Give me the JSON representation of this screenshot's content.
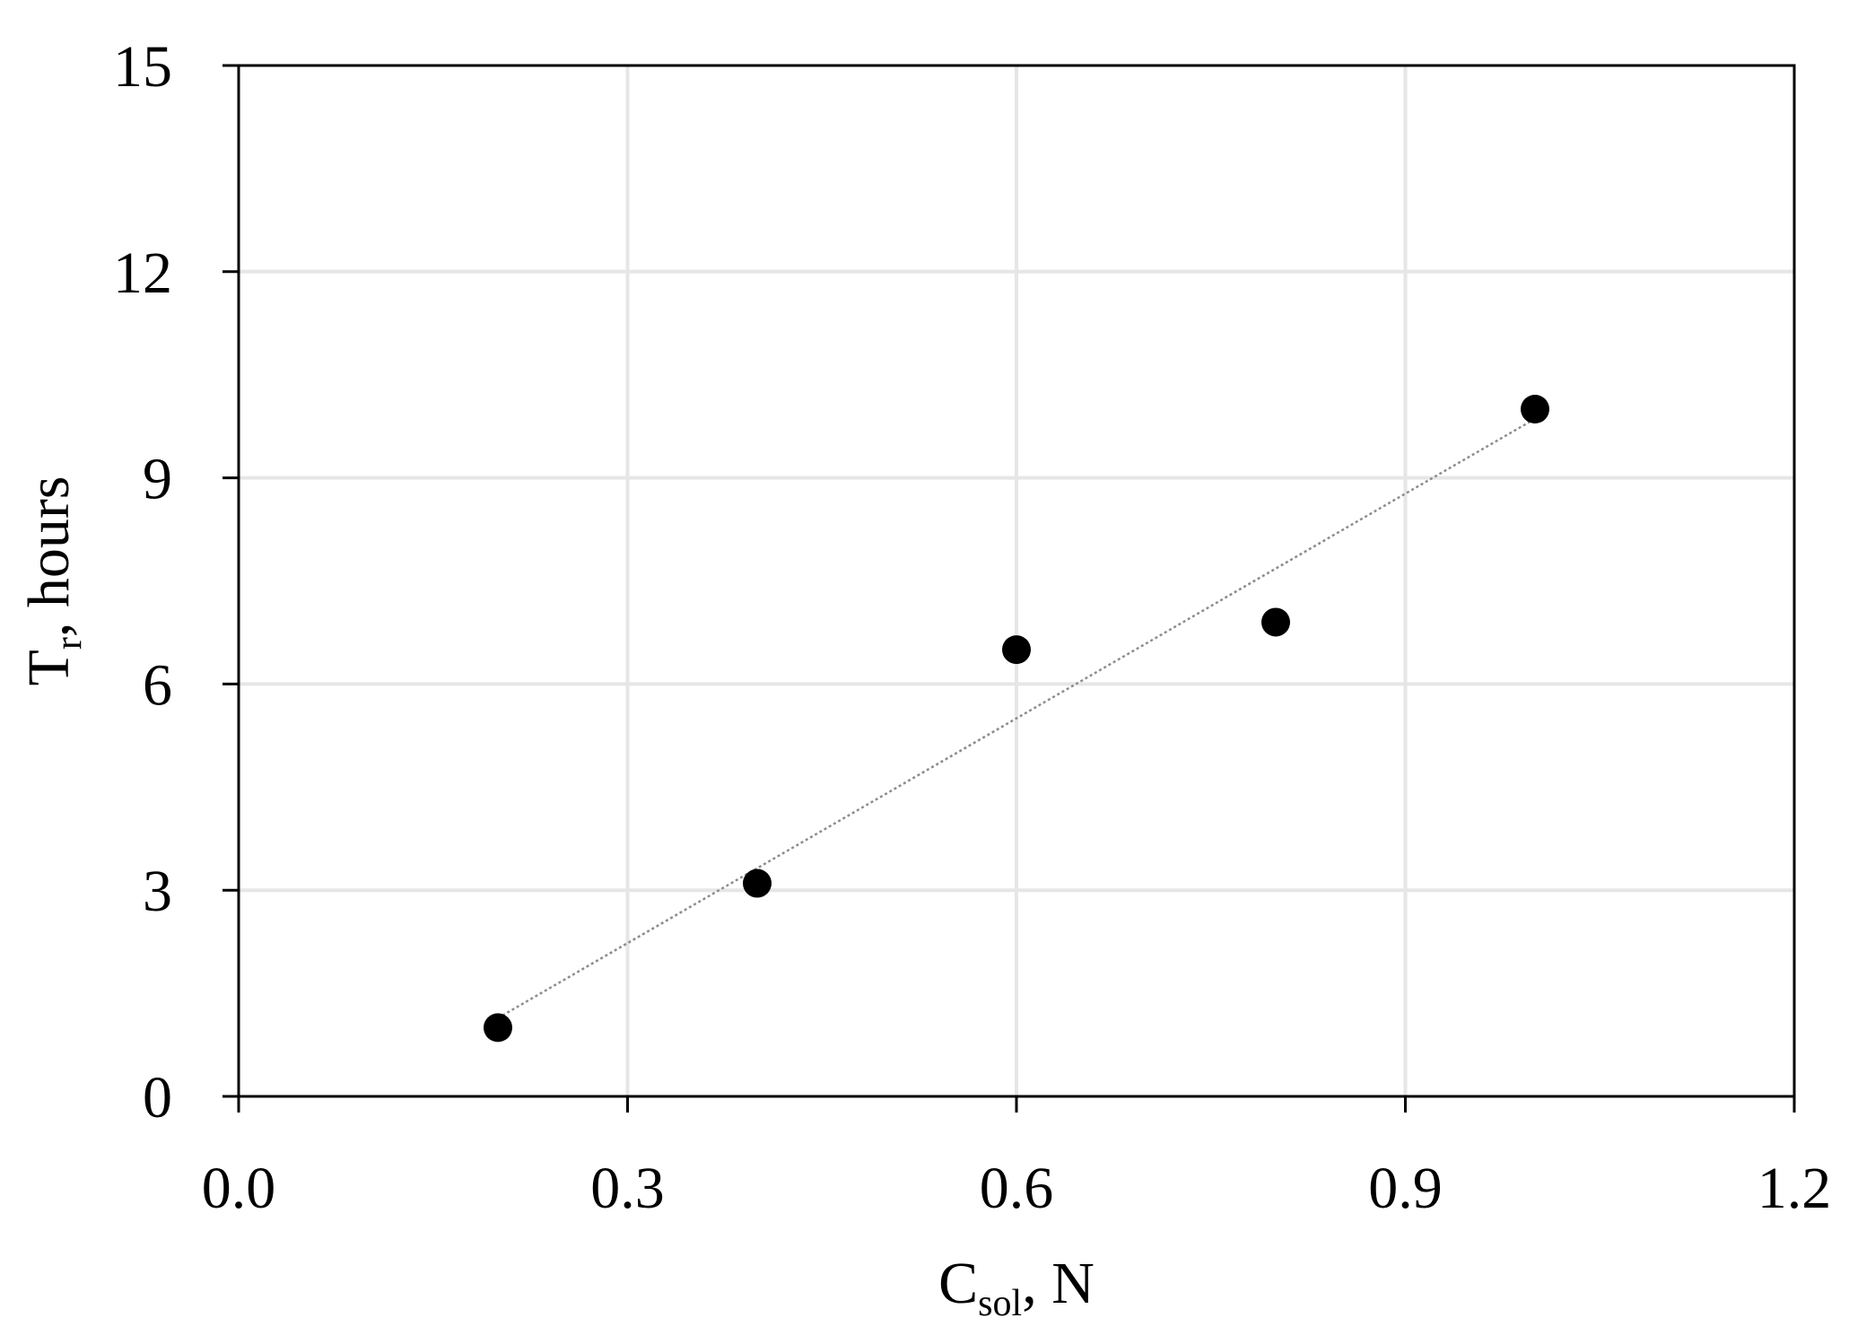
{
  "chart_data": {
    "type": "scatter",
    "title": "",
    "xlabel": {
      "main": "C",
      "sub": "sol",
      "rest": ", N"
    },
    "ylabel": {
      "main": "T",
      "sub": "r",
      "rest": ", hours"
    },
    "xlim": [
      0,
      1.2
    ],
    "ylim": [
      0,
      15
    ],
    "x_ticks": [
      0.0,
      0.3,
      0.6,
      0.9,
      1.2
    ],
    "x_tick_labels": [
      "0.0",
      "0.3",
      "0.6",
      "0.9",
      "1.2"
    ],
    "y_ticks": [
      0,
      3,
      6,
      9,
      12,
      15
    ],
    "y_tick_labels": [
      "0",
      "3",
      "6",
      "9",
      "12",
      "15"
    ],
    "grid": true,
    "legend": "none",
    "series": [
      {
        "x": [
          0.2,
          0.4,
          0.6,
          0.8,
          1.0
        ],
        "y": [
          1.0,
          3.1,
          6.5,
          6.9,
          10.0
        ],
        "color": "#000000",
        "marker": "circle"
      }
    ],
    "trendline": {
      "type": "linear",
      "style": "dotted",
      "color": "#8c8c8c"
    }
  }
}
